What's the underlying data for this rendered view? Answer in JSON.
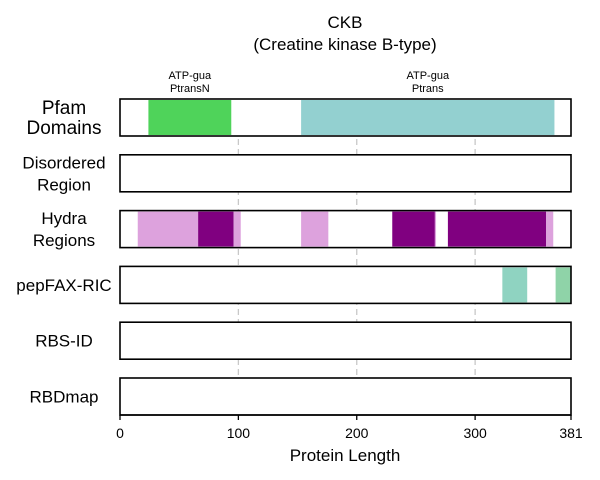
{
  "chart_data": {
    "type": "bar",
    "title": "CKB",
    "subtitle": "(Creatine kinase B-type)",
    "xlabel": "Protein Length",
    "xlim": [
      0,
      381
    ],
    "xticks": [
      0,
      100,
      200,
      300,
      381
    ],
    "grid": "vertical dashed lines at 100, 200, 300",
    "tracks": [
      {
        "label_lines": [
          "Pfam",
          "Domains"
        ],
        "segments": [
          {
            "start": 24,
            "end": 94,
            "color": "#4fd35a",
            "label_lines": [
              "ATP-gua",
              "PtransN"
            ]
          },
          {
            "start": 153,
            "end": 367,
            "color": "#93d0d0",
            "label_lines": [
              "ATP-gua",
              "Ptrans"
            ]
          }
        ]
      },
      {
        "label_lines": [
          "Disordered",
          "Region"
        ],
        "segments": []
      },
      {
        "label_lines": [
          "Hydra",
          "Regions"
        ],
        "segments": [
          {
            "start": 15,
            "end": 66,
            "color": "#dda2dd"
          },
          {
            "start": 66,
            "end": 96,
            "color": "#800080"
          },
          {
            "start": 96,
            "end": 102,
            "color": "#dda2dd"
          },
          {
            "start": 153,
            "end": 176,
            "color": "#dda2dd"
          },
          {
            "start": 230,
            "end": 266,
            "color": "#800080"
          },
          {
            "start": 266,
            "end": 267,
            "color": "#dda2dd"
          },
          {
            "start": 277,
            "end": 360,
            "color": "#800080"
          },
          {
            "start": 360,
            "end": 366,
            "color": "#dda2dd"
          }
        ]
      },
      {
        "label_lines": [
          "pepFAX-RIC"
        ],
        "segments": [
          {
            "start": 323,
            "end": 344,
            "color": "#8fd3c1"
          },
          {
            "start": 368,
            "end": 381,
            "color": "#8fd3a8"
          }
        ]
      },
      {
        "label_lines": [
          "RBS-ID"
        ],
        "segments": []
      },
      {
        "label_lines": [
          "RBDmap"
        ],
        "segments": []
      }
    ]
  }
}
